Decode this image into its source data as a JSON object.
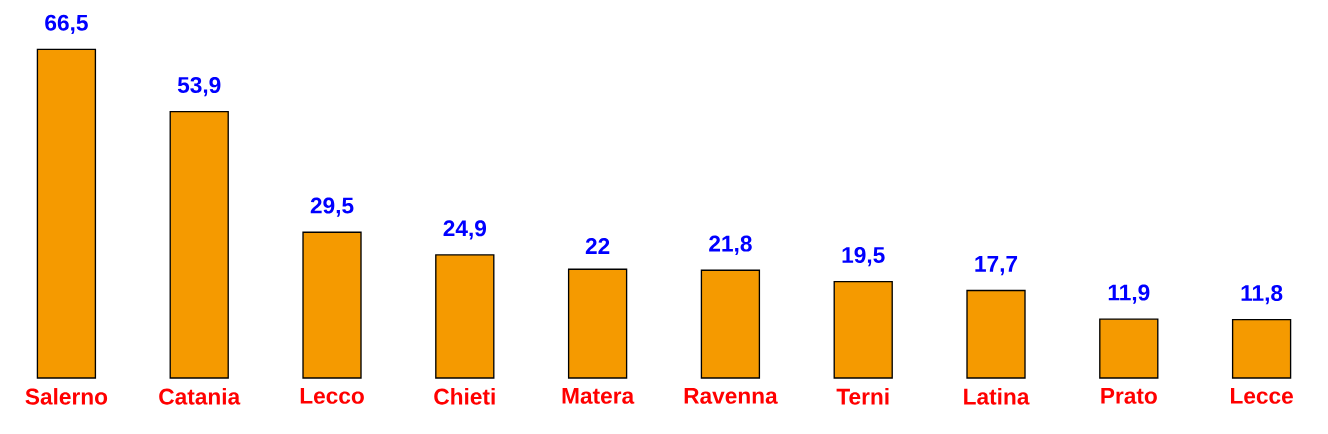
{
  "chart_data": {
    "type": "bar",
    "categories": [
      "Salerno",
      "Catania",
      "Lecco",
      "Chieti",
      "Matera",
      "Ravenna",
      "Terni",
      "Latina",
      "Prato",
      "Lecce"
    ],
    "values": [
      66.5,
      53.9,
      29.5,
      24.9,
      22,
      21.8,
      19.5,
      17.7,
      11.9,
      11.8
    ],
    "value_labels": [
      "66,5",
      "53,9",
      "29,5",
      "24,9",
      "22",
      "21,8",
      "19,5",
      "17,7",
      "11,9",
      "11,8"
    ],
    "color": "#f59a00"
  }
}
